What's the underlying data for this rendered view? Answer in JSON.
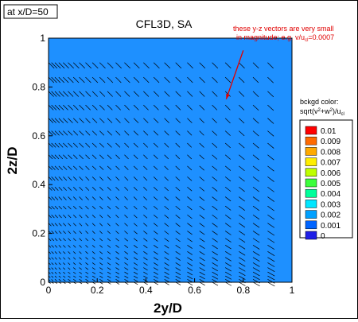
{
  "chart_data": {
    "type": "vector-field",
    "location_label": "at x/D=50",
    "title": "CFL3D, SA",
    "xlabel": "2y/D",
    "ylabel": "2z/D",
    "xlim": [
      0,
      1
    ],
    "ylim": [
      0,
      1
    ],
    "x_ticks": [
      "0",
      "0.2",
      "0.4",
      "0.6",
      "0.8",
      "1"
    ],
    "y_ticks": [
      "0",
      "0.2",
      "0.4",
      "0.6",
      "0.8",
      "1"
    ],
    "annotation": {
      "line1": "these y-z vectors are very small",
      "line2": "in magnitude; e.g. v/u",
      "line2_sub": "cl",
      "line2_tail": "=0.0007",
      "color": "#e00000",
      "arrow_from": [
        0.8,
        0.95
      ],
      "arrow_to": [
        0.73,
        0.75
      ]
    },
    "legend": {
      "title": "bckgd color:",
      "expression": "sqrt(v",
      "expression_sup1": "2",
      "expression_mid": "+w",
      "expression_sup2": "2",
      "expression_tail": ")/u",
      "expression_sub": "cl",
      "levels": [
        "0.01",
        "0.009",
        "0.008",
        "0.007",
        "0.006",
        "0.005",
        "0.004",
        "0.003",
        "0.002",
        "0.001",
        "0"
      ],
      "colors": [
        "#ff0000",
        "#ff6a00",
        "#ffaa00",
        "#ffee00",
        "#bfff00",
        "#3cff3c",
        "#00ff9a",
        "#00e6ff",
        "#00a0ff",
        "#0064ff",
        "#1f1fe6"
      ]
    },
    "background_color": "#1e90ff",
    "grid_y": [
      0.0,
      0.012,
      0.026,
      0.042,
      0.06,
      0.08,
      0.102,
      0.126,
      0.152,
      0.18,
      0.21,
      0.242,
      0.276,
      0.312,
      0.35,
      0.39,
      0.432,
      0.476,
      0.522,
      0.57,
      0.62,
      0.672,
      0.726,
      0.782,
      0.84,
      0.9
    ],
    "grid_z": [
      0.0,
      0.012,
      0.026,
      0.042,
      0.06,
      0.08,
      0.102,
      0.126,
      0.152,
      0.18,
      0.21,
      0.242,
      0.276,
      0.312,
      0.35,
      0.39,
      0.432,
      0.476,
      0.522,
      0.57,
      0.62,
      0.672,
      0.726,
      0.782,
      0.84,
      0.9
    ]
  }
}
